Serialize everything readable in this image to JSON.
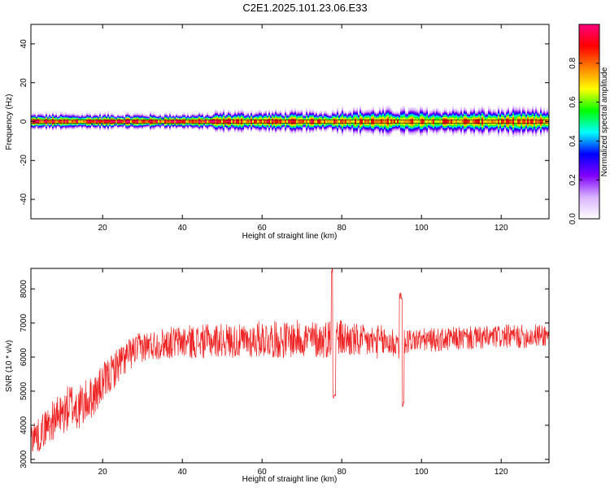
{
  "title": "C2E1.2025.101.23.06.E33",
  "chart_data": [
    {
      "type": "heatmap",
      "xlabel": "Height of straight line (km)",
      "ylabel": "Frequency (Hz)",
      "xlim": [
        2,
        132
      ],
      "ylim": [
        -50,
        50
      ],
      "xticks": [
        "20",
        "40",
        "60",
        "80",
        "100",
        "120"
      ],
      "yticks": [
        "40",
        "20",
        "0",
        "-20",
        "-40"
      ],
      "xtick_values": [
        20,
        40,
        60,
        80,
        100,
        120
      ],
      "ytick_values": [
        40,
        20,
        0,
        -20,
        -40
      ],
      "band": {
        "center_hz": 0,
        "segments": [
          {
            "x_start": 2,
            "x_end": 48,
            "half_width_hz": 3,
            "peak": 0.95
          },
          {
            "x_start": 48,
            "x_end": 78,
            "half_width_hz": 4,
            "peak": 0.9
          },
          {
            "x_start": 78,
            "x_end": 132,
            "half_width_hz": 5,
            "peak": 0.85
          }
        ]
      },
      "colorbar": {
        "label": "Normalized spectral amplitude",
        "range": [
          0,
          1
        ],
        "ticks": [
          "0.0",
          "0.2",
          "0.4",
          "0.6",
          "0.8"
        ],
        "tick_values": [
          0.0,
          0.2,
          0.4,
          0.6,
          0.8
        ],
        "colors": [
          "#ffffff",
          "#d9b3ff",
          "#8000ff",
          "#0000ff",
          "#00ffff",
          "#00ff00",
          "#ffff00",
          "#ff8000",
          "#ff0000",
          "#ff0080"
        ]
      }
    },
    {
      "type": "line",
      "xlabel": "Height of straight line (km)",
      "ylabel": "SNR (10 * v/v)",
      "xlim": [
        2,
        132
      ],
      "ylim": [
        2900,
        8600
      ],
      "xticks": [
        "20",
        "40",
        "60",
        "80",
        "100",
        "120"
      ],
      "yticks": [
        "3000",
        "4000",
        "5000",
        "6000",
        "7000",
        "8000"
      ],
      "xtick_values": [
        20,
        40,
        60,
        80,
        100,
        120
      ],
      "ytick_values": [
        3000,
        4000,
        5000,
        6000,
        7000,
        8000
      ],
      "color": "#ee2222",
      "series_envelope": {
        "x": [
          2,
          4,
          6,
          8,
          10,
          12,
          14,
          16,
          18,
          20,
          22,
          24,
          26,
          28,
          30,
          35,
          40,
          45,
          50,
          55,
          60,
          65,
          70,
          75,
          78,
          80,
          85,
          90,
          95,
          97,
          100,
          105,
          110,
          115,
          120,
          125,
          132
        ],
        "mean": [
          3700,
          3700,
          4000,
          4200,
          4300,
          4600,
          4500,
          4700,
          4900,
          5200,
          5500,
          5800,
          6000,
          6200,
          6300,
          6400,
          6450,
          6450,
          6500,
          6450,
          6550,
          6500,
          6550,
          6500,
          6600,
          6550,
          6450,
          6450,
          6400,
          6500,
          6500,
          6500,
          6550,
          6550,
          6600,
          6600,
          6650
        ],
        "amplitude": [
          500,
          500,
          550,
          600,
          650,
          700,
          700,
          650,
          600,
          600,
          550,
          550,
          500,
          450,
          450,
          450,
          500,
          500,
          500,
          500,
          550,
          550,
          550,
          550,
          600,
          550,
          500,
          500,
          500,
          350,
          350,
          350,
          350,
          350,
          350,
          350,
          350
        ]
      },
      "spikes": [
        {
          "x": 77.7,
          "y": 8550
        },
        {
          "x": 78.1,
          "y": 4900
        },
        {
          "x": 95.3,
          "y": 4600
        },
        {
          "x": 94.8,
          "y": 7800
        }
      ]
    }
  ]
}
